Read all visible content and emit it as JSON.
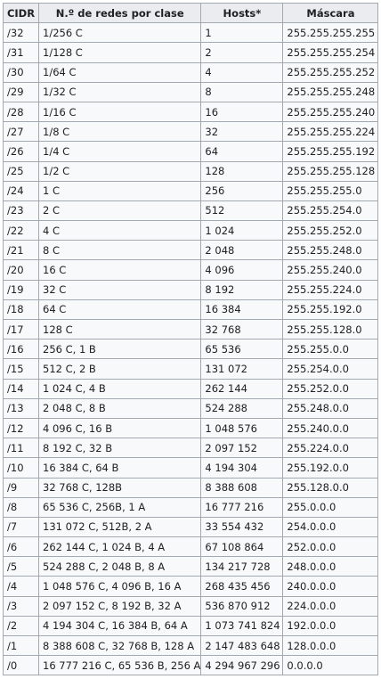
{
  "table": {
    "headers": [
      "CIDR",
      "N.º de redes por clase",
      "Hosts*",
      "Máscara"
    ],
    "rows": [
      [
        "/32",
        "1/256 C",
        "1",
        "255.255.255.255"
      ],
      [
        "/31",
        "1/128 C",
        "2",
        "255.255.255.254"
      ],
      [
        "/30",
        "1/64 C",
        "4",
        "255.255.255.252"
      ],
      [
        "/29",
        "1/32 C",
        "8",
        "255.255.255.248"
      ],
      [
        "/28",
        "1/16 C",
        "16",
        "255.255.255.240"
      ],
      [
        "/27",
        "1/8 C",
        "32",
        "255.255.255.224"
      ],
      [
        "/26",
        "1/4 C",
        "64",
        "255.255.255.192"
      ],
      [
        "/25",
        "1/2 C",
        "128",
        "255.255.255.128"
      ],
      [
        "/24",
        "1 C",
        "256",
        "255.255.255.0"
      ],
      [
        "/23",
        "2 C",
        "512",
        "255.255.254.0"
      ],
      [
        "/22",
        "4 C",
        "1 024",
        "255.255.252.0"
      ],
      [
        "/21",
        "8 C",
        "2 048",
        "255.255.248.0"
      ],
      [
        "/20",
        "16 C",
        "4 096",
        "255.255.240.0"
      ],
      [
        "/19",
        "32 C",
        "8 192",
        "255.255.224.0"
      ],
      [
        "/18",
        "64 C",
        "16 384",
        "255.255.192.0"
      ],
      [
        "/17",
        "128 C",
        "32 768",
        "255.255.128.0"
      ],
      [
        "/16",
        "256 C, 1 B",
        "65 536",
        "255.255.0.0"
      ],
      [
        "/15",
        "512 C, 2 B",
        "131 072",
        "255.254.0.0"
      ],
      [
        "/14",
        "1 024 C, 4 B",
        "262 144",
        "255.252.0.0"
      ],
      [
        "/13",
        "2 048 C, 8 B",
        "524 288",
        "255.248.0.0"
      ],
      [
        "/12",
        "4 096 C, 16 B",
        "1 048 576",
        "255.240.0.0"
      ],
      [
        "/11",
        "8 192 C, 32 B",
        "2 097 152",
        "255.224.0.0"
      ],
      [
        "/10",
        "16 384 C, 64 B",
        "4 194 304",
        "255.192.0.0"
      ],
      [
        "/9",
        "32 768 C, 128B",
        "8 388 608",
        "255.128.0.0"
      ],
      [
        "/8",
        "65 536 C, 256B, 1 A",
        "16 777 216",
        "255.0.0.0"
      ],
      [
        "/7",
        "131 072 C, 512B, 2 A",
        "33 554 432",
        "254.0.0.0"
      ],
      [
        "/6",
        "262 144 C, 1 024 B, 4 A",
        "67 108 864",
        "252.0.0.0"
      ],
      [
        "/5",
        "524 288 C, 2 048 B, 8 A",
        "134 217 728",
        "248.0.0.0"
      ],
      [
        "/4",
        "1 048 576 C, 4 096 B, 16 A",
        "268 435 456",
        "240.0.0.0"
      ],
      [
        "/3",
        "2 097 152 C, 8 192 B, 32 A",
        "536 870 912",
        "224.0.0.0"
      ],
      [
        "/2",
        "4 194 304 C, 16 384 B, 64 A",
        "1 073 741 824",
        "192.0.0.0"
      ],
      [
        "/1",
        "8 388 608 C, 32 768 B, 128 A",
        "2 147 483 648",
        "128.0.0.0"
      ],
      [
        "/0",
        "16 777 216 C, 65 536 B, 256 A",
        "4 294 967 296",
        "0.0.0.0"
      ]
    ]
  }
}
